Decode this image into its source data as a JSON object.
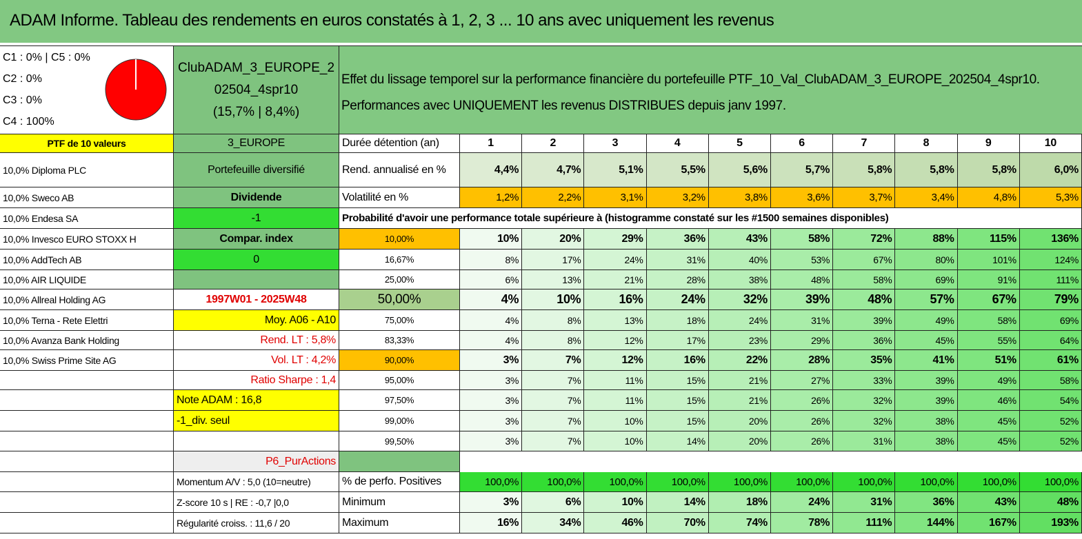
{
  "header": {
    "title": "ADAM Informe. Tableau des rendements en euros constatés à 1, 2, 3 ... 10 ans avec uniquement les revenus"
  },
  "pie_legend": [
    "C1 : 0% | C5 : 0%",
    "C2 : 0%",
    "C3 : 0%",
    "C4 : 100%"
  ],
  "portfolio": {
    "name": "ClubADAM_3_EUROPE_202504_4spr10",
    "stats": "(15,7% | 8,4%)"
  },
  "description": [
    "Effet du lissage temporel sur la performance financière du portefeuille PTF_10_Val_ClubADAM_3_EUROPE_202504_4spr10.",
    "Performances avec UNIQUEMENT les revenus DISTRIBUES depuis janv 1997."
  ],
  "rows": [
    {
      "a": "PTF de 10 valeurs",
      "b": "3_EUROPE",
      "c": "Durée détention (an)",
      "values": [
        "1",
        "2",
        "3",
        "4",
        "5",
        "6",
        "7",
        "8",
        "9",
        "10"
      ]
    },
    {
      "a": "10,0% Diploma PLC",
      "b": "Portefeuille diversifié",
      "c": "Rend. annualisé en %",
      "values": [
        "4,4%",
        "4,7%",
        "5,1%",
        "5,5%",
        "5,6%",
        "5,7%",
        "5,8%",
        "5,8%",
        "5,8%",
        "6,0%"
      ]
    },
    {
      "a": "10,0% Sweco AB",
      "b": "Dividende",
      "c": "Volatilité en %",
      "values": [
        "1,2%",
        "2,2%",
        "3,1%",
        "3,2%",
        "3,8%",
        "3,6%",
        "3,7%",
        "3,4%",
        "4,8%",
        "5,3%"
      ]
    },
    {
      "a": "10,0% Endesa SA",
      "b": "-1",
      "note": "Probabilité d'avoir une performance totale supérieure à (histogramme constaté sur les #1500 semaines disponibles)"
    },
    {
      "a": "10,0% Invesco EURO STOXX H",
      "b": "Compar. index",
      "c": "10,00%",
      "values": [
        "10%",
        "20%",
        "29%",
        "36%",
        "43%",
        "58%",
        "72%",
        "88%",
        "115%",
        "136%"
      ]
    },
    {
      "a": "10,0% AddTech AB",
      "b": "0",
      "c": "16,67%",
      "values": [
        "8%",
        "17%",
        "24%",
        "31%",
        "40%",
        "53%",
        "67%",
        "80%",
        "101%",
        "124%"
      ]
    },
    {
      "a": "10,0% AIR LIQUIDE",
      "c": "25,00%",
      "values": [
        "6%",
        "13%",
        "21%",
        "28%",
        "38%",
        "48%",
        "58%",
        "69%",
        "91%",
        "111%"
      ]
    },
    {
      "a": "10,0% Allreal Holding AG",
      "b": "1997W01 - 2025W48",
      "c": "50,00%",
      "values": [
        "4%",
        "10%",
        "16%",
        "24%",
        "32%",
        "39%",
        "48%",
        "57%",
        "67%",
        "79%"
      ]
    },
    {
      "a": "10,0% Terna - Rete Elettri",
      "b": "Moy. A06 - A10",
      "c": "75,00%",
      "values": [
        "4%",
        "8%",
        "13%",
        "18%",
        "24%",
        "31%",
        "39%",
        "49%",
        "58%",
        "69%"
      ]
    },
    {
      "a": "10,0% Avanza Bank Holding",
      "b": "Rend. LT : 5,8%",
      "c": "83,33%",
      "values": [
        "4%",
        "8%",
        "12%",
        "17%",
        "23%",
        "29%",
        "36%",
        "45%",
        "55%",
        "64%"
      ]
    },
    {
      "a": "10,0% Swiss Prime Site AG",
      "b": "Vol. LT : 4,2%",
      "c": "90,00%",
      "values": [
        "3%",
        "7%",
        "12%",
        "16%",
        "22%",
        "28%",
        "35%",
        "41%",
        "51%",
        "61%"
      ]
    },
    {
      "b": "Ratio Sharpe : 1,4",
      "c": "95,00%",
      "values": [
        "3%",
        "7%",
        "11%",
        "15%",
        "21%",
        "27%",
        "33%",
        "39%",
        "49%",
        "58%"
      ]
    },
    {
      "b": "Note ADAM : 16,8",
      "c": "97,50%",
      "values": [
        "3%",
        "7%",
        "11%",
        "15%",
        "21%",
        "26%",
        "32%",
        "39%",
        "46%",
        "54%"
      ]
    },
    {
      "b": "-1_div. seul",
      "c": "99,00%",
      "values": [
        "3%",
        "7%",
        "10%",
        "15%",
        "20%",
        "26%",
        "32%",
        "38%",
        "45%",
        "52%"
      ]
    },
    {
      "c": "99,50%",
      "values": [
        "3%",
        "7%",
        "10%",
        "14%",
        "20%",
        "26%",
        "31%",
        "38%",
        "45%",
        "52%"
      ]
    },
    {
      "b": "P6_PurActions"
    },
    {
      "b": "Momentum A/V : 5,0 (10=neutre)",
      "c": "% de perfo. Positives",
      "values": [
        "100,0%",
        "100,0%",
        "100,0%",
        "100,0%",
        "100,0%",
        "100,0%",
        "100,0%",
        "100,0%",
        "100,0%",
        "100,0%"
      ]
    },
    {
      "b": "Z-score 10 s | RE : -0,7 |0,0",
      "c": "Minimum",
      "values": [
        "3%",
        "6%",
        "10%",
        "14%",
        "18%",
        "24%",
        "31%",
        "36%",
        "43%",
        "48%"
      ]
    },
    {
      "b": "Régularité croiss. : 11,6 / 20",
      "c": "Maximum",
      "values": [
        "16%",
        "34%",
        "46%",
        "70%",
        "74%",
        "78%",
        "111%",
        "144%",
        "167%",
        "193%"
      ]
    }
  ]
}
